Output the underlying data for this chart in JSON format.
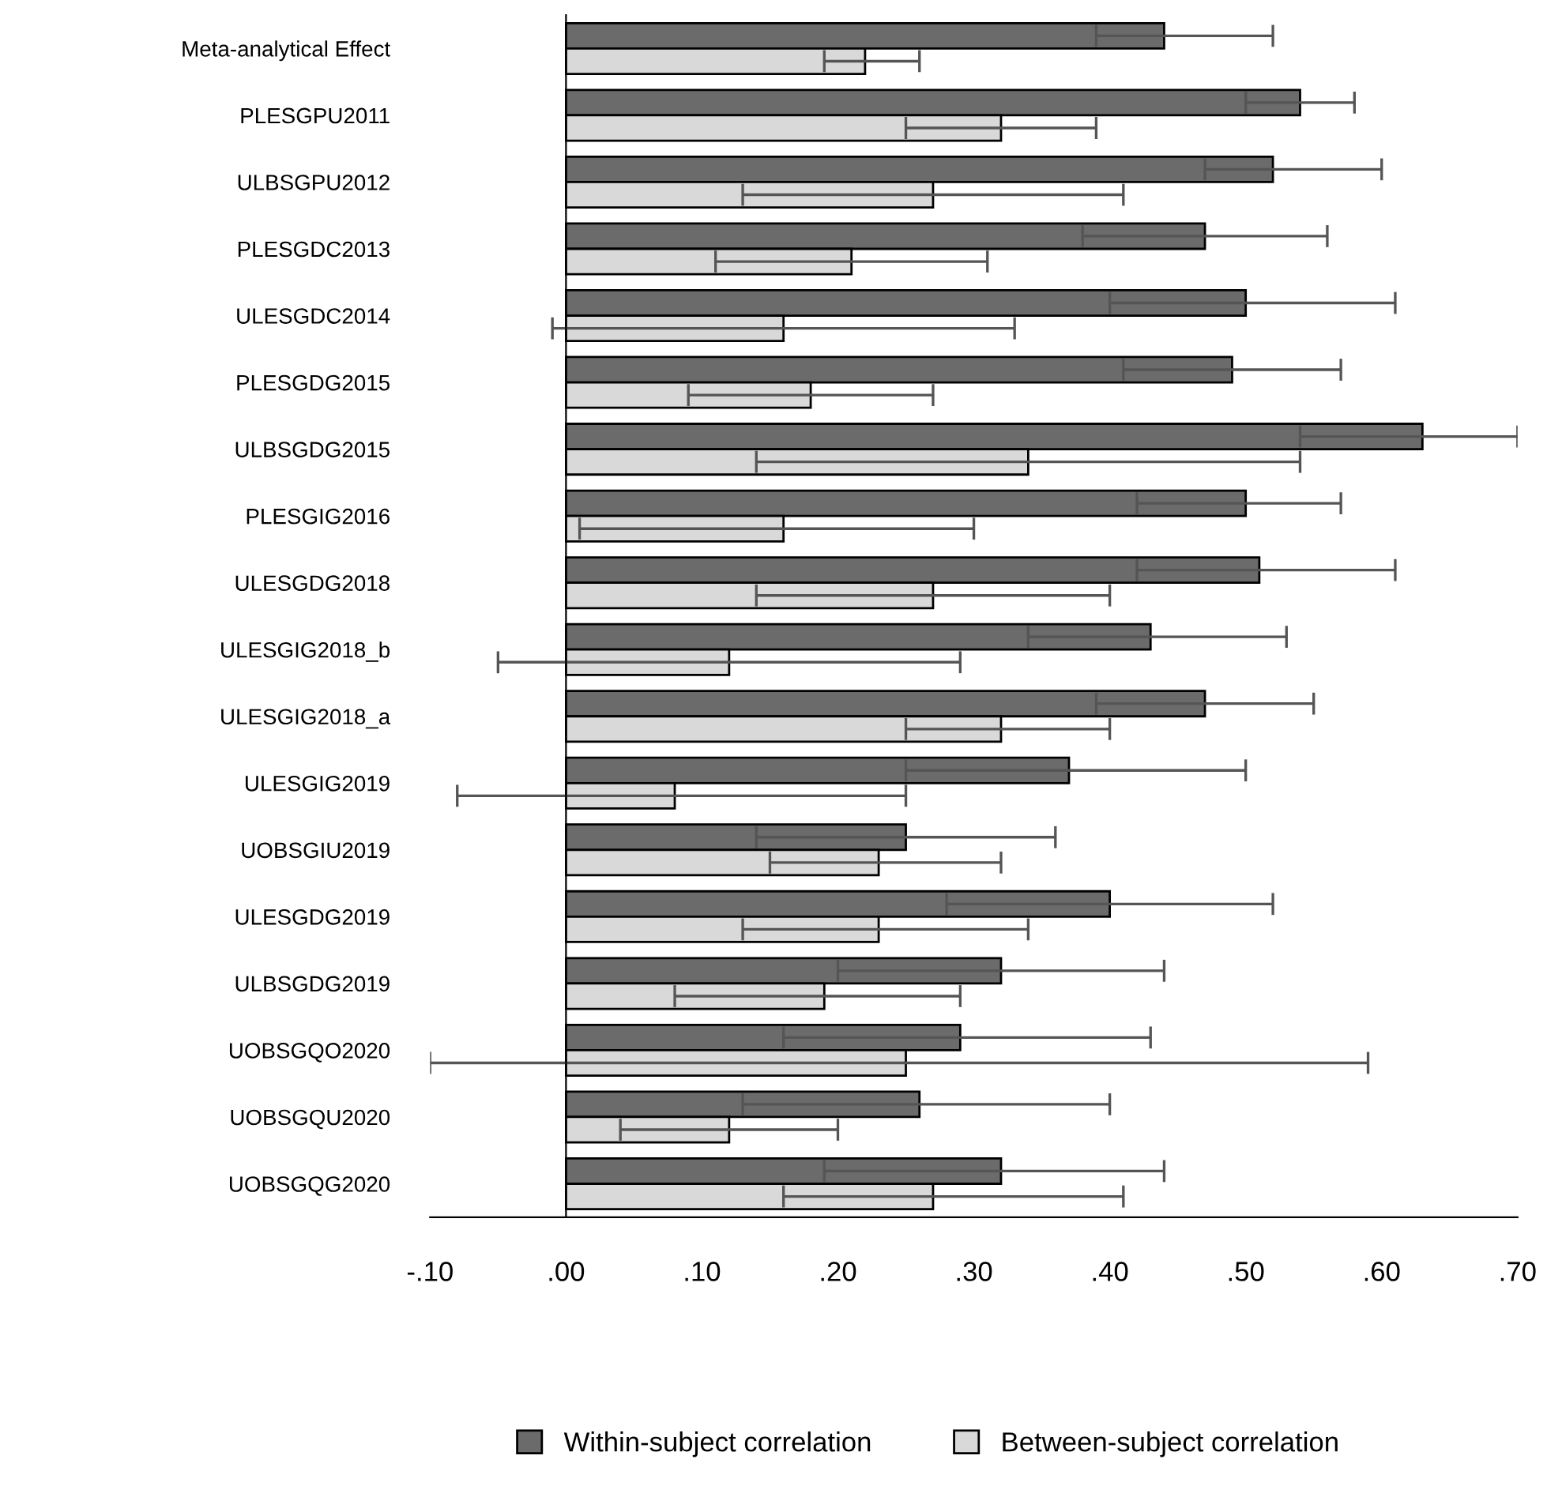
{
  "chart_data": {
    "type": "bar",
    "orientation": "horizontal",
    "categories": [
      "Meta-analytical Effect",
      "PLESGPU2011",
      "ULBSGPU2012",
      "PLESGDC2013",
      "ULESGDC2014",
      "PLESGDG2015",
      "ULBSGDG2015",
      "PLESGIG2016",
      "ULESGDG2018",
      "ULESGIG2018_b",
      "ULESGIG2018_a",
      "ULESGIG2019",
      "UOBSGIU2019",
      "ULESGDG2019",
      "ULBSGDG2019",
      "UOBSGQO2020",
      "UOBSGQU2020",
      "UOBSGQG2020"
    ],
    "series": [
      {
        "name": "Within-subject correlation",
        "color": "#6b6b6b",
        "values": [
          0.44,
          0.54,
          0.52,
          0.47,
          0.5,
          0.49,
          0.63,
          0.5,
          0.51,
          0.43,
          0.47,
          0.37,
          0.25,
          0.4,
          0.32,
          0.29,
          0.26,
          0.32
        ],
        "errors": [
          [
            0.39,
            0.52
          ],
          [
            0.5,
            0.58
          ],
          [
            0.47,
            0.6
          ],
          [
            0.38,
            0.56
          ],
          [
            0.4,
            0.61
          ],
          [
            0.41,
            0.57
          ],
          [
            0.54,
            0.7
          ],
          [
            0.42,
            0.57
          ],
          [
            0.42,
            0.61
          ],
          [
            0.34,
            0.53
          ],
          [
            0.39,
            0.55
          ],
          [
            0.25,
            0.5
          ],
          [
            0.14,
            0.36
          ],
          [
            0.28,
            0.52
          ],
          [
            0.2,
            0.44
          ],
          [
            0.16,
            0.43
          ],
          [
            0.13,
            0.4
          ],
          [
            0.19,
            0.44
          ]
        ]
      },
      {
        "name": "Between-subject correlation",
        "color": "#d9d9d9",
        "values": [
          0.22,
          0.32,
          0.27,
          0.21,
          0.16,
          0.18,
          0.34,
          0.16,
          0.27,
          0.12,
          0.32,
          0.08,
          0.23,
          0.23,
          0.19,
          0.25,
          0.12,
          0.27
        ],
        "errors": [
          [
            0.19,
            0.26
          ],
          [
            0.25,
            0.39
          ],
          [
            0.13,
            0.41
          ],
          [
            0.11,
            0.31
          ],
          [
            -0.01,
            0.33
          ],
          [
            0.09,
            0.27
          ],
          [
            0.14,
            0.54
          ],
          [
            0.01,
            0.3
          ],
          [
            0.14,
            0.4
          ],
          [
            -0.05,
            0.29
          ],
          [
            0.25,
            0.4
          ],
          [
            -0.08,
            0.25
          ],
          [
            0.15,
            0.32
          ],
          [
            0.13,
            0.34
          ],
          [
            0.08,
            0.29
          ],
          [
            -0.1,
            0.59
          ],
          [
            0.04,
            0.2
          ],
          [
            0.16,
            0.41
          ]
        ]
      }
    ],
    "xlim": [
      -0.1,
      0.7
    ],
    "xticks": [
      {
        "value": -0.1,
        "label": "-.10"
      },
      {
        "value": 0,
        "label": ".00"
      },
      {
        "value": 0.1,
        "label": ".10"
      },
      {
        "value": 0.2,
        "label": ".20"
      },
      {
        "value": 0.3,
        "label": ".30"
      },
      {
        "value": 0.4,
        "label": ".40"
      },
      {
        "value": 0.5,
        "label": ".50"
      },
      {
        "value": 0.6,
        "label": ".60"
      },
      {
        "value": 0.7,
        "label": ".70"
      }
    ],
    "legend": "bottom"
  }
}
